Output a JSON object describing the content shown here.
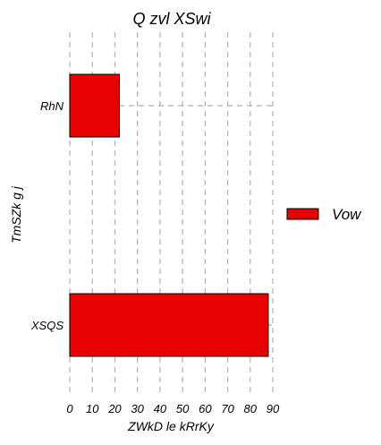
{
  "chart_data": {
    "type": "bar",
    "orientation": "horizontal",
    "title": "Q zvl XSwi",
    "xlabel": "ZWkD le kRrKy",
    "ylabel": "TmSZk g j",
    "categories": [
      "RhN",
      "XSQS"
    ],
    "series": [
      {
        "name": "Vow",
        "values": [
          22,
          88
        ]
      }
    ],
    "xlim": [
      0,
      90
    ],
    "xticks": [
      "0",
      "10",
      "20",
      "30",
      "40",
      "50",
      "60",
      "70",
      "80",
      "90"
    ],
    "grid": true,
    "legend_position": "right",
    "colors": {
      "bar": "#e60000",
      "bar_edge": "#000000",
      "grid": "#b0b0b0"
    }
  }
}
